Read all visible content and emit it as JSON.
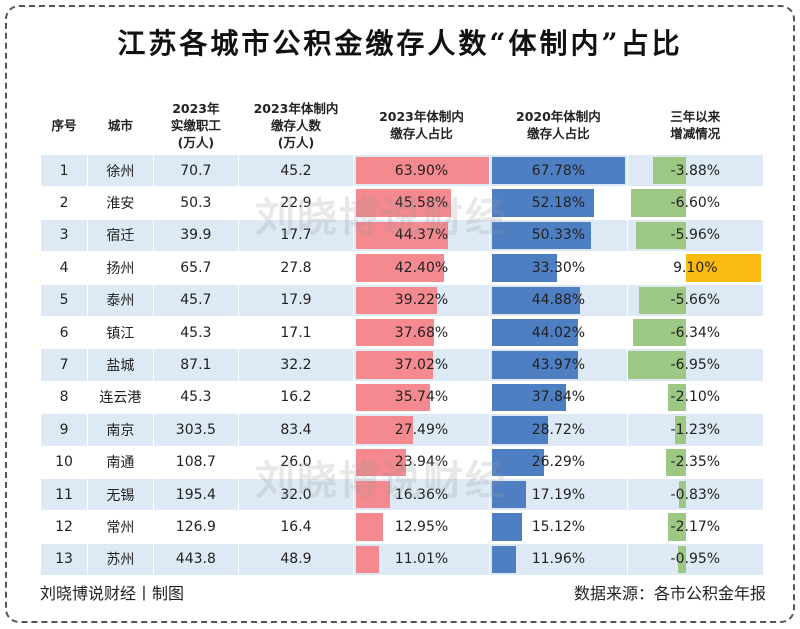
{
  "title": "江苏各城市公积金缴存人数“体制内”占比",
  "watermark": "刘晓博说财经",
  "footer": {
    "left": "刘晓博说财经丨制图",
    "right": "数据来源：各市公积金年报"
  },
  "colors": {
    "bar_2023": "#f4898f",
    "bar_2020": "#4f7fc3",
    "change_negative": "#9dc883",
    "change_positive": "#fbbb12",
    "row_stripe": "#dde9f5"
  },
  "chart_data": {
    "type": "table",
    "title": "江苏各城市公积金缴存人数“体制内”占比",
    "columns": [
      "序号",
      "城市",
      "2023年\n实缴职工\n(万人)",
      "2023年体制内\n缴存人数\n(万人)",
      "2023年体制内\n缴存人占比",
      "2020年体制内\n缴存人占比",
      "三年以来\n增减情况"
    ],
    "rows": [
      [
        "1",
        "徐州",
        "70.7",
        "45.2",
        "63.90%",
        "67.78%",
        "-3.88%"
      ],
      [
        "2",
        "淮安",
        "50.3",
        "22.9",
        "45.58%",
        "52.18%",
        "-6.60%"
      ],
      [
        "3",
        "宿迁",
        "39.9",
        "17.7",
        "44.37%",
        "50.33%",
        "-5.96%"
      ],
      [
        "4",
        "扬州",
        "65.7",
        "27.8",
        "42.40%",
        "33.30%",
        "9.10%"
      ],
      [
        "5",
        "泰州",
        "45.7",
        "17.9",
        "39.22%",
        "44.88%",
        "-5.66%"
      ],
      [
        "6",
        "镇江",
        "45.3",
        "17.1",
        "37.68%",
        "44.02%",
        "-6.34%"
      ],
      [
        "7",
        "盐城",
        "87.1",
        "32.2",
        "37.02%",
        "43.97%",
        "-6.95%"
      ],
      [
        "8",
        "连云港",
        "45.3",
        "16.2",
        "35.74%",
        "37.84%",
        "-2.10%"
      ],
      [
        "9",
        "南京",
        "303.5",
        "83.4",
        "27.49%",
        "28.72%",
        "-1.23%"
      ],
      [
        "10",
        "南通",
        "108.7",
        "26.0",
        "23.94%",
        "26.29%",
        "-2.35%"
      ],
      [
        "11",
        "无锡",
        "195.4",
        "32.0",
        "16.36%",
        "17.19%",
        "-0.83%"
      ],
      [
        "12",
        "常州",
        "126.9",
        "16.4",
        "12.95%",
        "15.12%",
        "-2.17%"
      ],
      [
        "13",
        "苏州",
        "443.8",
        "48.9",
        "11.01%",
        "11.96%",
        "-0.95%"
      ]
    ]
  }
}
